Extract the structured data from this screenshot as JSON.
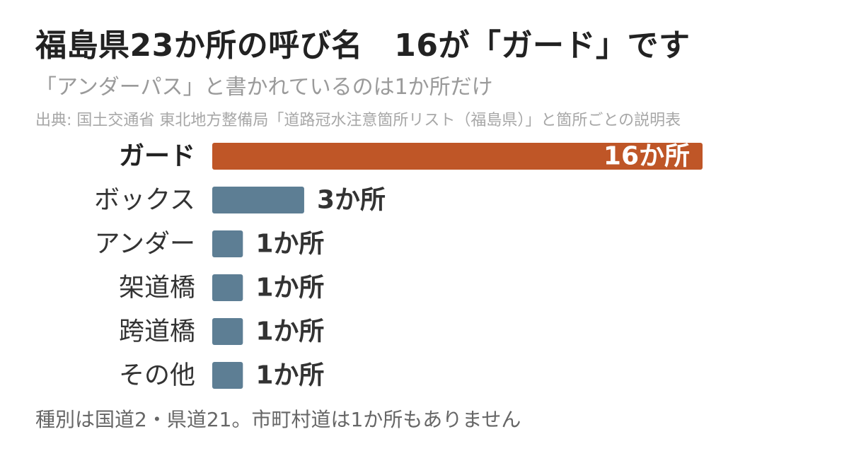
{
  "header": {
    "title": "福島県23か所の呼び名　16が「ガード」です",
    "subtitle": "「アンダーパス」と書かれているのは1か所だけ",
    "source": "出典: 国土交通省 東北地方整備局「道路冠水注意箇所リスト（福島県）」と箇所ごとの説明表"
  },
  "footer": {
    "note": "種別は国道2・県道21。市町村道は1か所もありません"
  },
  "colors": {
    "highlight_bar": "#bf5627",
    "default_bar": "#5d7e94",
    "highlight_label": "#222222",
    "default_label": "#333333",
    "value_label_outside": "#333333",
    "value_label_inside": "#ffffff"
  },
  "chart_data": {
    "type": "bar",
    "orientation": "horizontal",
    "categories": [
      "ガード",
      "ボックス",
      "アンダー",
      "架道橋",
      "跨道橋",
      "その他"
    ],
    "values": [
      16,
      3,
      1,
      1,
      1,
      1
    ],
    "value_labels": [
      "16か所",
      "3か所",
      "1か所",
      "1か所",
      "1か所",
      "1か所"
    ],
    "highlight_index": 0,
    "xlim": [
      0,
      16
    ],
    "grid": false,
    "legend": "none"
  }
}
